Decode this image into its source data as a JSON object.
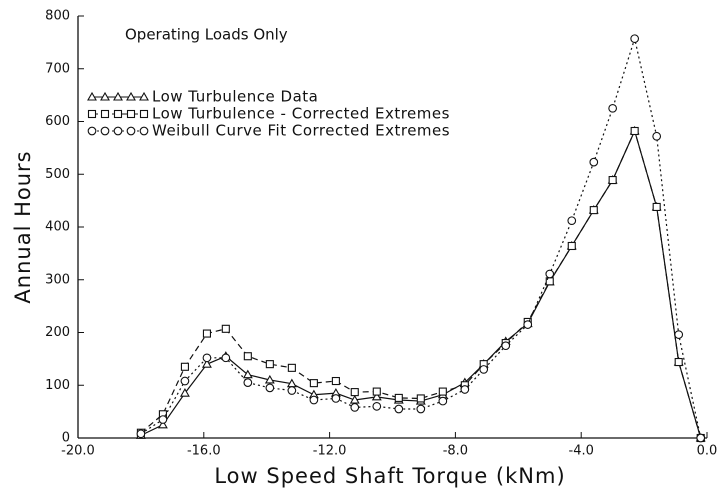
{
  "chart_data": {
    "type": "line",
    "annotation": "Operating Loads Only",
    "xlabel": "Low Speed Shaft Torque (kNm)",
    "ylabel": "Annual Hours",
    "x": [
      -18.0,
      -17.3,
      -16.6,
      -15.9,
      -15.3,
      -14.6,
      -13.9,
      -13.2,
      -12.5,
      -11.8,
      -11.2,
      -10.5,
      -9.8,
      -9.1,
      -8.4,
      -7.7,
      -7.1,
      -6.4,
      -5.7,
      -5.0,
      -4.3,
      -3.6,
      -3.0,
      -2.3,
      -1.6,
      -0.9,
      -0.2
    ],
    "series": [
      {
        "name": "Low Turbulence Data",
        "color": "#111111",
        "marker": "triangle",
        "dash": "solid",
        "values": [
          5,
          25,
          85,
          140,
          155,
          120,
          110,
          103,
          82,
          85,
          72,
          78,
          72,
          70,
          82,
          105,
          140,
          183,
          217,
          296,
          364,
          432,
          489,
          582,
          438,
          144,
          0
        ]
      },
      {
        "name": "Low Turbulence - Corrected Extremes",
        "color": "#111111",
        "marker": "square",
        "dash": "dashed",
        "values": [
          10,
          45,
          135,
          198,
          207,
          155,
          140,
          133,
          104,
          108,
          87,
          88,
          76,
          75,
          88,
          100,
          140,
          180,
          220,
          297,
          364,
          432,
          489,
          582,
          438,
          144,
          0
        ]
      },
      {
        "name": "Weibull Curve Fit Corrected Extremes",
        "color": "#111111",
        "marker": "circle",
        "dash": "dotted",
        "values": [
          8,
          35,
          108,
          152,
          152,
          105,
          95,
          90,
          72,
          75,
          58,
          60,
          55,
          55,
          70,
          92,
          130,
          175,
          215,
          311,
          412,
          523,
          625,
          757,
          572,
          196,
          0
        ]
      }
    ],
    "xlim": [
      -20,
      0
    ],
    "xticks": [
      {
        "value": -20,
        "label": "-20.0"
      },
      {
        "value": -16,
        "label": "-16.0"
      },
      {
        "value": -12,
        "label": "-12.0"
      },
      {
        "value": -8,
        "label": "-8.0"
      },
      {
        "value": -4,
        "label": "-4.0"
      },
      {
        "value": 0,
        "label": "0.0"
      }
    ],
    "ylim": [
      0,
      800
    ],
    "yticks": [
      0,
      100,
      200,
      300,
      400,
      500,
      600,
      700,
      800
    ],
    "grid": false,
    "legend": "upper left"
  }
}
